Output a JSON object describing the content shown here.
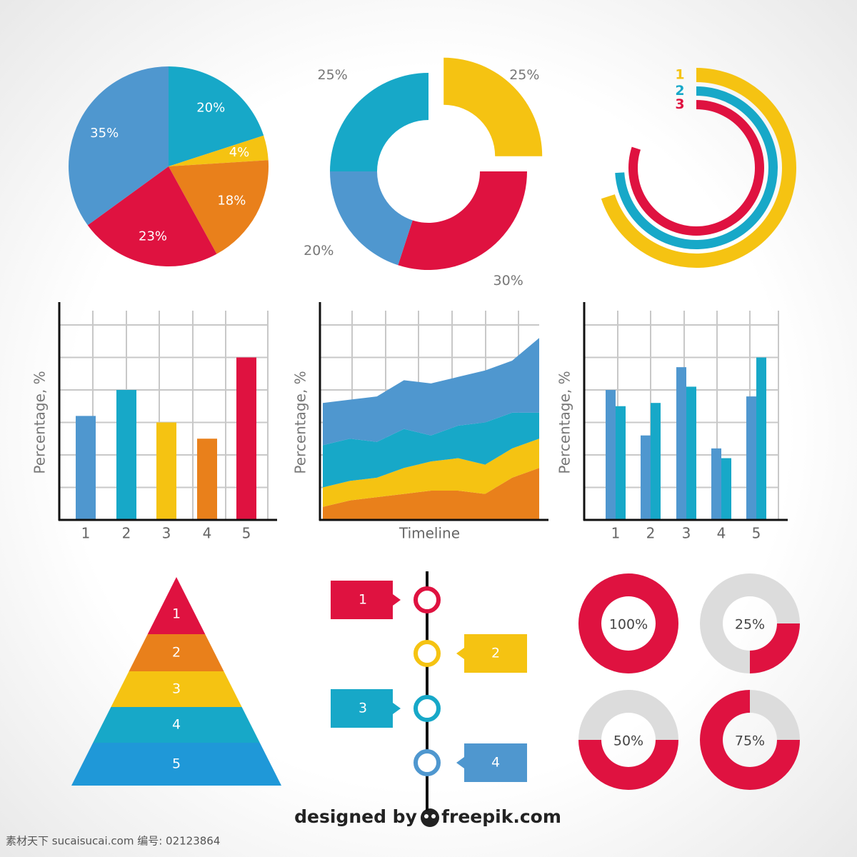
{
  "chart_data": [
    {
      "type": "pie",
      "values": [
        20,
        4,
        18,
        23,
        35
      ],
      "value_labels": [
        "20%",
        "4%",
        "18%",
        "23%",
        "35%"
      ],
      "colors": [
        "#17a8c8",
        "#f5c312",
        "#e9801b",
        "#df1240",
        "#4f97cf"
      ]
    },
    {
      "type": "donut",
      "values": [
        25,
        30,
        20,
        25
      ],
      "value_labels": [
        "25%",
        "30%",
        "20%",
        "25%"
      ],
      "colors": [
        "#f5c312",
        "#df1240",
        "#4f97cf",
        "#17a8c8"
      ],
      "exploded": [
        true,
        false,
        false,
        false
      ]
    },
    {
      "type": "radial_bar",
      "categories": [
        "1",
        "2",
        "3"
      ],
      "values": [
        70,
        74,
        80
      ],
      "colors": [
        "#f5c312",
        "#17a8c8",
        "#df1240"
      ]
    },
    {
      "type": "bar",
      "categories": [
        "1",
        "2",
        "3",
        "4",
        "5"
      ],
      "values": [
        3.2,
        4,
        3,
        2.5,
        5
      ],
      "colors": [
        "#4f97cf",
        "#17a8c8",
        "#f5c312",
        "#e9801b",
        "#df1240"
      ],
      "y_label": "Percentage, %",
      "ylim": [
        0,
        6
      ],
      "yticks": [
        0,
        1,
        2,
        3,
        4,
        5,
        6
      ],
      "grid": true
    },
    {
      "type": "area",
      "x_label": "Timeline",
      "y_label": "Percentage, %",
      "stacked": true,
      "x": [
        0,
        1,
        2,
        3,
        4,
        5,
        6,
        7,
        8
      ],
      "xlim": [
        0,
        8
      ],
      "ylim": [
        0,
        6
      ],
      "yticks": [
        0,
        1,
        2,
        3,
        4,
        5,
        6
      ],
      "grid": true,
      "series": [
        {
          "color": "#e9801b",
          "values": [
            0.4,
            0.6,
            0.7,
            0.8,
            0.9,
            0.9,
            0.8,
            1.3,
            1.6
          ]
        },
        {
          "color": "#f5c312",
          "values": [
            0.6,
            0.6,
            0.6,
            0.8,
            0.9,
            1.0,
            0.9,
            0.9,
            0.9
          ]
        },
        {
          "color": "#17a8c8",
          "values": [
            1.3,
            1.3,
            1.1,
            1.2,
            0.8,
            1.0,
            1.3,
            1.1,
            0.8
          ]
        },
        {
          "color": "#4f97cf",
          "values": [
            1.3,
            1.2,
            1.4,
            1.5,
            1.6,
            1.5,
            1.6,
            1.6,
            2.3
          ]
        }
      ]
    },
    {
      "type": "grouped_bar",
      "categories": [
        "1",
        "2",
        "3",
        "4",
        "5"
      ],
      "y_label": "Percentage, %",
      "ylim": [
        0,
        6
      ],
      "yticks": [
        0,
        1,
        2,
        3,
        4,
        5,
        6
      ],
      "grid": true,
      "series": [
        {
          "color": "#4f97cf",
          "values": [
            4.0,
            2.6,
            4.7,
            2.2,
            3.8
          ]
        },
        {
          "color": "#17a8c8",
          "values": [
            3.5,
            3.6,
            4.1,
            1.9,
            5.0
          ]
        }
      ]
    },
    {
      "type": "pyramid",
      "categories": [
        "1",
        "2",
        "3",
        "4",
        "5"
      ],
      "colors": [
        "#df1240",
        "#e9801b",
        "#f5c312",
        "#17a8c8",
        "#1f98d8"
      ]
    },
    {
      "type": "timeline",
      "categories": [
        "1",
        "2",
        "3",
        "4"
      ],
      "colors": [
        "#df1240",
        "#f5c312",
        "#17a8c8",
        "#4f97cf"
      ]
    },
    {
      "type": "gauge",
      "values": [
        100,
        25,
        50,
        75
      ],
      "value_labels": [
        "100%",
        "25%",
        "50%",
        "75%"
      ],
      "color": "#df1240",
      "track_color": "#dcdcdc"
    }
  ],
  "footer": {
    "credit": "designed by",
    "brand": "freepik.com",
    "watermark": "素材天下 sucaisucai.com  编号: 02123864"
  }
}
